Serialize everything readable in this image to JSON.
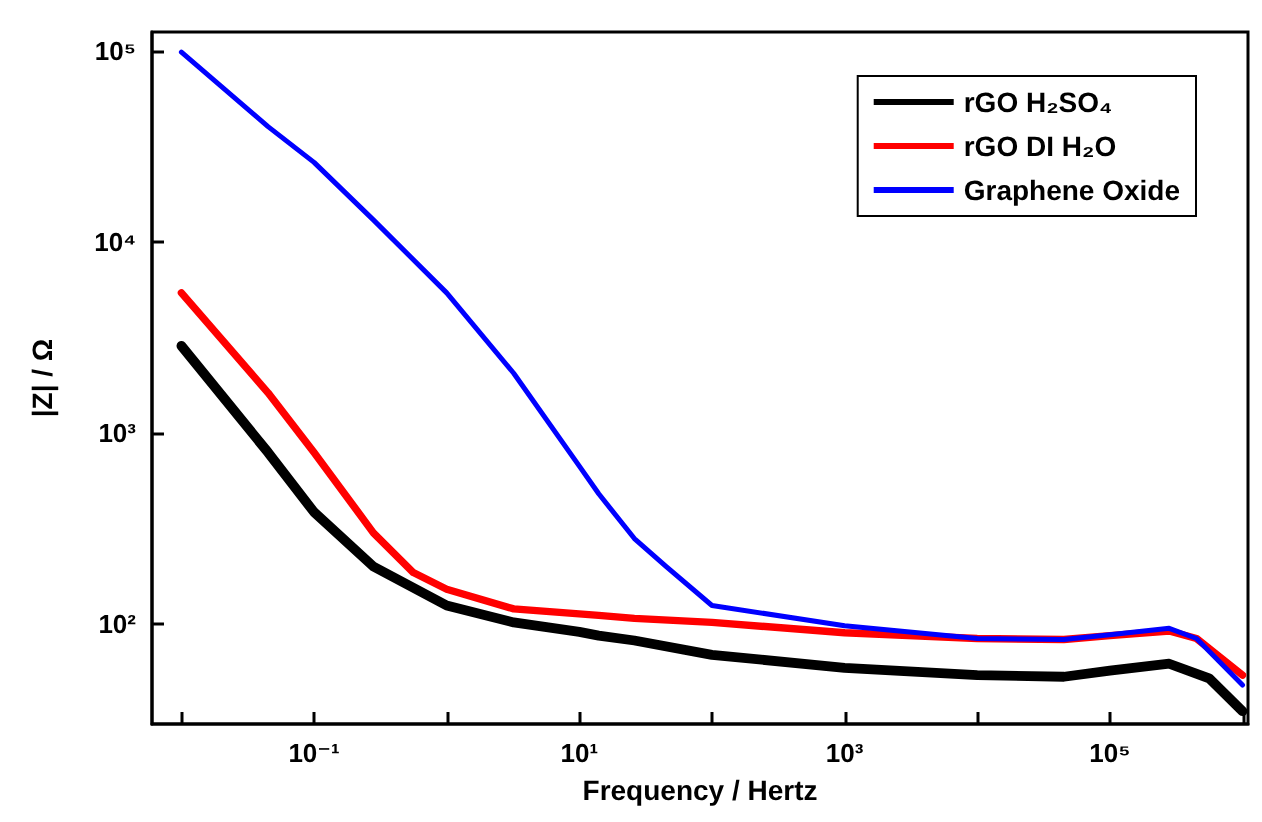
{
  "chart_data": {
    "type": "line",
    "xlabel": "Frequency / Hertz",
    "ylabel": "|Z| / Ω",
    "log": "xy",
    "grid": false,
    "legend": "top right",
    "marker": "none",
    "line_style": "solid",
    "xlim": [
      0.006,
      1100000
    ],
    "ylim": [
      30,
      125000
    ],
    "xticks": [
      {
        "value": 0.01,
        "label": null
      },
      {
        "value": 0.1,
        "label": "10⁻¹"
      },
      {
        "value": 1,
        "label": null
      },
      {
        "value": 10,
        "label": "10¹"
      },
      {
        "value": 100,
        "label": null
      },
      {
        "value": 1000,
        "label": "10³"
      },
      {
        "value": 10000,
        "label": null
      },
      {
        "value": 100000,
        "label": "10⁵"
      },
      {
        "value": 1000000,
        "label": null
      }
    ],
    "yticks": [
      {
        "value": 100,
        "label": "10²"
      },
      {
        "value": 1000,
        "label": "10³"
      },
      {
        "value": 10000,
        "label": "10⁴"
      },
      {
        "value": 100000,
        "label": "10⁵"
      }
    ],
    "series": [
      {
        "name": "rGO H₂SO₄",
        "color": "#000000",
        "x": [
          0.01,
          0.045,
          0.1,
          0.28,
          1,
          3.2,
          10,
          14,
          26,
          100,
          1000,
          10000,
          45000,
          100000,
          280000,
          560000,
          1000000
        ],
        "values": [
          2850,
          790,
          385,
          200,
          125,
          102,
          91,
          87,
          82,
          69,
          59,
          54,
          53,
          57,
          62,
          52,
          35
        ]
      },
      {
        "name": "rGO DI H₂O",
        "color": "#ff0000",
        "x": [
          0.01,
          0.045,
          0.1,
          0.28,
          0.56,
          1,
          3.2,
          14,
          26,
          100,
          1000,
          10000,
          45000,
          100000,
          280000,
          450000,
          1000000
        ],
        "values": [
          5400,
          1620,
          790,
          300,
          186,
          152,
          120,
          111,
          107,
          102,
          90,
          84,
          83,
          87,
          92,
          84,
          54
        ]
      },
      {
        "name": "Graphene Oxide",
        "color": "#0000ff",
        "x": [
          0.01,
          0.045,
          0.1,
          0.28,
          1,
          3.2,
          10,
          14,
          26,
          45,
          100,
          1000,
          10000,
          45000,
          100000,
          280000,
          450000,
          1000000
        ],
        "values": [
          98000,
          40000,
          26000,
          13000,
          5400,
          2050,
          670,
          480,
          280,
          200,
          125,
          98,
          84,
          83,
          88,
          95,
          84,
          48
        ]
      }
    ]
  }
}
